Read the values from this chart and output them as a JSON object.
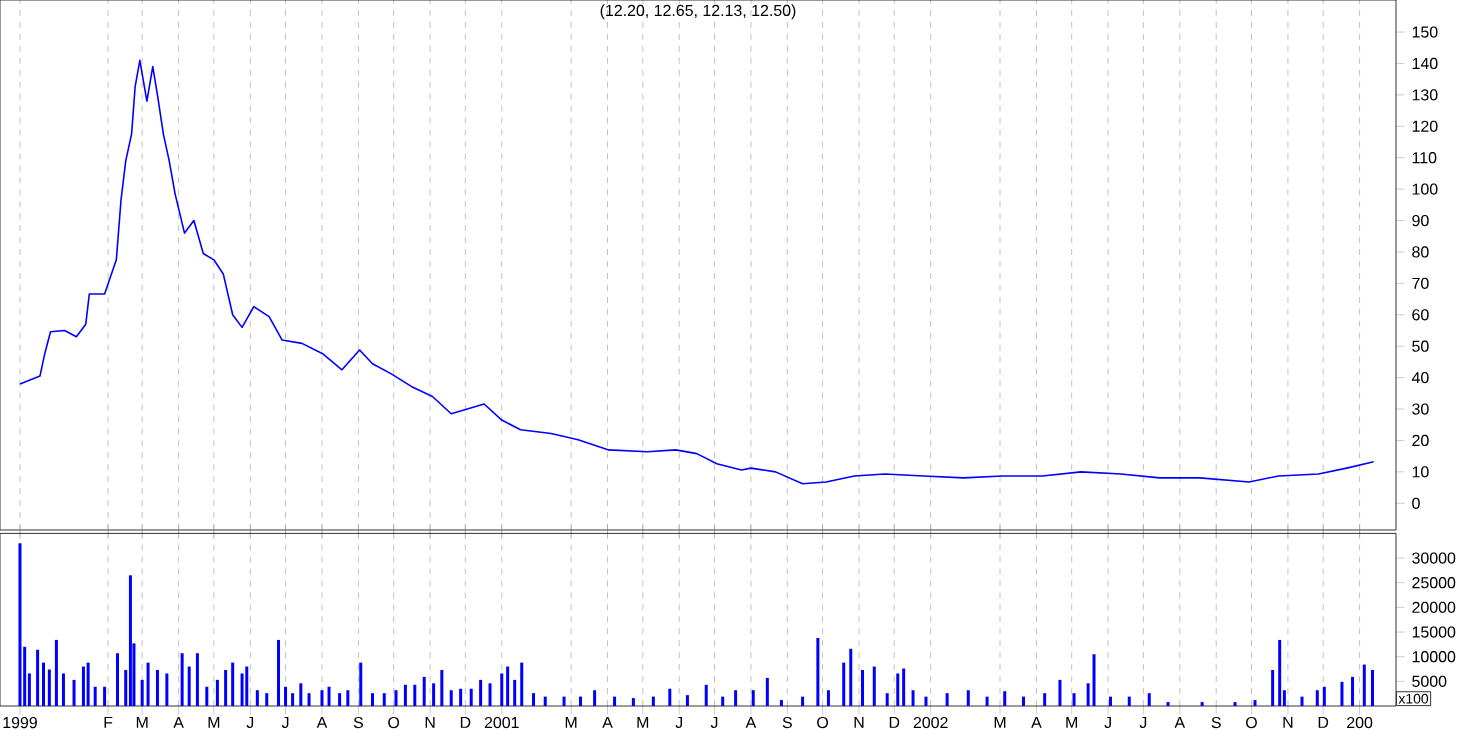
{
  "chart_data": [
    {
      "type": "line",
      "title": "(12.20, 12.65, 12.13, 12.50)",
      "color": "#0000ff",
      "grid": "x",
      "tick_labels": "y",
      "x": [
        "1999-11-18",
        "1999-12-05",
        "1999-12-09",
        "1999-12-14",
        "1999-12-26",
        "2000-01-05",
        "2000-01-13",
        "2000-01-16",
        "2000-01-29",
        "2000-02-08",
        "2000-02-12",
        "2000-02-16",
        "2000-02-21",
        "2000-02-24",
        "2000-02-28",
        "2000-03-05",
        "2000-03-10",
        "2000-03-14",
        "2000-03-19",
        "2000-03-24",
        "2000-03-29",
        "2000-04-06",
        "2000-04-14",
        "2000-04-22",
        "2000-05-01",
        "2000-05-09",
        "2000-05-17",
        "2000-05-25",
        "2000-06-04",
        "2000-06-17",
        "2000-06-28",
        "2000-07-15",
        "2000-08-02",
        "2000-08-18",
        "2000-09-02",
        "2000-09-13",
        "2000-09-29",
        "2000-10-16",
        "2000-11-03",
        "2000-11-19",
        "2000-12-17",
        "2001-01-01",
        "2001-01-17",
        "2001-02-12",
        "2001-03-07",
        "2001-04-02",
        "2001-05-05",
        "2001-05-29",
        "2001-06-16",
        "2001-07-03",
        "2001-07-24",
        "2001-08-01",
        "2001-08-22",
        "2001-09-14",
        "2001-10-04",
        "2001-10-28",
        "2001-11-23",
        "2001-12-26",
        "2002-01-29",
        "2002-03-03",
        "2002-04-06",
        "2002-05-09",
        "2002-06-12",
        "2002-07-15",
        "2002-08-18",
        "2002-09-29",
        "2002-10-24",
        "2002-11-27",
        "2002-12-21",
        "2003-01-13"
      ],
      "values": [
        38,
        40.5,
        47.5,
        54.6,
        55,
        53,
        57,
        66.6,
        66.6,
        77.5,
        96.6,
        109,
        117.6,
        132.6,
        141,
        128,
        139,
        130,
        117.6,
        109,
        98.5,
        86,
        90,
        79.5,
        77.5,
        73,
        60,
        56,
        62.6,
        59.4,
        52,
        50.9,
        47.5,
        42.5,
        48.8,
        44.4,
        41.2,
        37.2,
        34,
        28.5,
        31.6,
        26.5,
        23.4,
        22.2,
        20.2,
        17,
        16.4,
        17,
        15.8,
        12.6,
        10.6,
        11.2,
        10,
        6.2,
        6.8,
        8.7,
        9.3,
        8.7,
        8.1,
        8.7,
        8.7,
        10,
        9.3,
        8.1,
        8.1,
        6.8,
        8.7,
        9.3,
        11.2,
        13.2
      ],
      "xlim": [
        "1999-11-01",
        "2003-02-01"
      ],
      "ylim": [
        -8.5,
        160.2
      ],
      "yticks": [
        0,
        10,
        20,
        30,
        40,
        50,
        60,
        70,
        80,
        90,
        100,
        110,
        120,
        130,
        140,
        150
      ],
      "xticks": [
        {
          "value": "1999-11-18",
          "label": null
        },
        {
          "value": "2000-02",
          "label": null
        },
        {
          "value": "2000-03",
          "label": null
        },
        {
          "value": "2000-04",
          "label": null
        },
        {
          "value": "2000-05",
          "label": null
        },
        {
          "value": "2000-06",
          "label": null
        },
        {
          "value": "2000-07",
          "label": null
        },
        {
          "value": "2000-08",
          "label": null
        },
        {
          "value": "2000-09",
          "label": null
        },
        {
          "value": "2000-10",
          "label": null
        },
        {
          "value": "2000-11",
          "label": null
        },
        {
          "value": "2000-12",
          "label": null
        },
        {
          "value": "2001-01",
          "label": null
        },
        {
          "value": "2001-03",
          "label": null
        },
        {
          "value": "2001-04",
          "label": null
        },
        {
          "value": "2001-05",
          "label": null
        },
        {
          "value": "2001-06",
          "label": null
        },
        {
          "value": "2001-07",
          "label": null
        },
        {
          "value": "2001-08",
          "label": null
        },
        {
          "value": "2001-09",
          "label": null
        },
        {
          "value": "2001-10",
          "label": null
        },
        {
          "value": "2001-11",
          "label": null
        },
        {
          "value": "2001-12",
          "label": null
        },
        {
          "value": "2002-01",
          "label": null
        },
        {
          "value": "2002-03",
          "label": null
        },
        {
          "value": "2002-04",
          "label": null
        },
        {
          "value": "2002-05",
          "label": null
        },
        {
          "value": "2002-06",
          "label": null
        },
        {
          "value": "2002-07",
          "label": null
        },
        {
          "value": "2002-08",
          "label": null
        },
        {
          "value": "2002-09",
          "label": null
        },
        {
          "value": "2002-10",
          "label": null
        },
        {
          "value": "2002-11",
          "label": null
        },
        {
          "value": "2002-12",
          "label": null
        },
        {
          "value": "2003-01",
          "label": null
        }
      ]
    },
    {
      "type": "bar",
      "color": "#0000ff",
      "grid": "x",
      "annotations": [
        "x100"
      ],
      "x": [
        "1999-11-18",
        "1999-11-22",
        "1999-11-26",
        "1999-12-03",
        "1999-12-08",
        "1999-12-13",
        "1999-12-19",
        "1999-12-25",
        "2000-01-03",
        "2000-01-11",
        "2000-01-15",
        "2000-01-21",
        "2000-01-29",
        "2000-02-09",
        "2000-02-16",
        "2000-02-20",
        "2000-02-23",
        "2000-03-01",
        "2000-03-06",
        "2000-03-14",
        "2000-03-22",
        "2000-04-04",
        "2000-04-10",
        "2000-04-17",
        "2000-04-25",
        "2000-05-04",
        "2000-05-11",
        "2000-05-17",
        "2000-05-25",
        "2000-05-29",
        "2000-06-07",
        "2000-06-15",
        "2000-06-25",
        "2000-07-01",
        "2000-07-07",
        "2000-07-14",
        "2000-07-21",
        "2000-08-01",
        "2000-08-07",
        "2000-08-16",
        "2000-08-23",
        "2000-09-03",
        "2000-09-13",
        "2000-09-23",
        "2000-10-03",
        "2000-10-11",
        "2000-10-19",
        "2000-10-27",
        "2000-11-04",
        "2000-11-11",
        "2000-11-19",
        "2000-11-27",
        "2000-12-06",
        "2000-12-14",
        "2000-12-22",
        "2001-01-01",
        "2001-01-06",
        "2001-01-12",
        "2001-01-18",
        "2001-01-28",
        "2001-02-07",
        "2001-02-23",
        "2001-03-09",
        "2001-03-21",
        "2001-04-07",
        "2001-04-23",
        "2001-05-10",
        "2001-05-24",
        "2001-06-08",
        "2001-06-24",
        "2001-07-08",
        "2001-07-19",
        "2001-08-03",
        "2001-08-15",
        "2001-08-27",
        "2001-09-14",
        "2001-09-27",
        "2001-10-06",
        "2001-10-19",
        "2001-10-25",
        "2001-11-04",
        "2001-11-14",
        "2001-11-25",
        "2001-12-04",
        "2001-12-09",
        "2001-12-17",
        "2001-12-28",
        "2002-01-15",
        "2002-02-02",
        "2002-02-18",
        "2002-03-05",
        "2002-03-21",
        "2002-04-08",
        "2002-04-21",
        "2002-05-03",
        "2002-05-15",
        "2002-05-20",
        "2002-06-03",
        "2002-06-19",
        "2002-07-06",
        "2002-07-22",
        "2002-08-20",
        "2002-09-17",
        "2002-10-04",
        "2002-10-19",
        "2002-10-25",
        "2002-10-29",
        "2002-11-13",
        "2002-11-26",
        "2002-12-02",
        "2002-12-17",
        "2002-12-26",
        "2003-01-05",
        "2003-01-12"
      ],
      "values": [
        33000,
        12000,
        6600,
        11400,
        8800,
        7400,
        13400,
        6600,
        5300,
        8000,
        8800,
        3900,
        3900,
        10700,
        7300,
        26500,
        12700,
        5300,
        8800,
        7300,
        6600,
        10700,
        8000,
        10700,
        3900,
        5300,
        7300,
        8800,
        6600,
        8000,
        3200,
        2600,
        13400,
        3900,
        2600,
        4600,
        2600,
        3200,
        3900,
        2600,
        3200,
        8800,
        2600,
        2600,
        3200,
        4300,
        4300,
        5900,
        4600,
        7300,
        3200,
        3500,
        3500,
        5300,
        4600,
        6600,
        8000,
        5300,
        8800,
        2600,
        1900,
        1900,
        1900,
        3200,
        1900,
        1600,
        1900,
        3500,
        2200,
        4300,
        1900,
        3200,
        3200,
        5700,
        1200,
        1900,
        13800,
        3200,
        8800,
        11600,
        7300,
        8000,
        2600,
        6600,
        7600,
        3200,
        1900,
        2600,
        3200,
        1900,
        3000,
        1900,
        2600,
        5300,
        2600,
        4600,
        10500,
        1900,
        1900,
        2600,
        800,
        800,
        800,
        1200,
        7300,
        13400,
        3200,
        1900,
        3200,
        3900,
        4900,
        5900,
        8400,
        7300
      ],
      "xlim": [
        "1999-11-01",
        "2003-02-01"
      ],
      "ylim": [
        0,
        35000
      ],
      "yticks": [
        5000,
        10000,
        15000,
        20000,
        25000,
        30000
      ],
      "xticks": [
        {
          "value": "1999-11-18",
          "label": "1999"
        },
        {
          "value": "2000-02",
          "label": "F"
        },
        {
          "value": "2000-03",
          "label": "M"
        },
        {
          "value": "2000-04",
          "label": "A"
        },
        {
          "value": "2000-05",
          "label": "M"
        },
        {
          "value": "2000-06",
          "label": "J"
        },
        {
          "value": "2000-07",
          "label": "J"
        },
        {
          "value": "2000-08",
          "label": "A"
        },
        {
          "value": "2000-09",
          "label": "S"
        },
        {
          "value": "2000-10",
          "label": "O"
        },
        {
          "value": "2000-11",
          "label": "N"
        },
        {
          "value": "2000-12",
          "label": "D"
        },
        {
          "value": "2001-01",
          "label": "2001"
        },
        {
          "value": "2001-03",
          "label": "M"
        },
        {
          "value": "2001-04",
          "label": "A"
        },
        {
          "value": "2001-05",
          "label": "M"
        },
        {
          "value": "2001-06",
          "label": "J"
        },
        {
          "value": "2001-07",
          "label": "J"
        },
        {
          "value": "2001-08",
          "label": "A"
        },
        {
          "value": "2001-09",
          "label": "S"
        },
        {
          "value": "2001-10",
          "label": "O"
        },
        {
          "value": "2001-11",
          "label": "N"
        },
        {
          "value": "2001-12",
          "label": "D"
        },
        {
          "value": "2002-01",
          "label": "2002"
        },
        {
          "value": "2002-03",
          "label": "M"
        },
        {
          "value": "2002-04",
          "label": "A"
        },
        {
          "value": "2002-05",
          "label": "M"
        },
        {
          "value": "2002-06",
          "label": "J"
        },
        {
          "value": "2002-07",
          "label": "J"
        },
        {
          "value": "2002-08",
          "label": "A"
        },
        {
          "value": "2002-09",
          "label": "S"
        },
        {
          "value": "2002-10",
          "label": "O"
        },
        {
          "value": "2002-11",
          "label": "N"
        },
        {
          "value": "2002-12",
          "label": "D"
        },
        {
          "value": "2003-01",
          "label": "200"
        }
      ]
    }
  ]
}
